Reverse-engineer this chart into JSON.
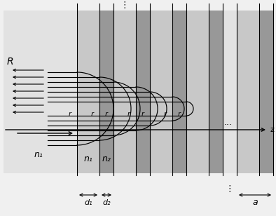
{
  "fig_width": 3.94,
  "fig_height": 3.08,
  "dpi": 100,
  "color_bg_outer": "#f0f0f0",
  "color_bg_main": "#e2e2e2",
  "color_n1_slab": "#c8c8c8",
  "color_n2_slab": "#989898",
  "color_black": "#000000",
  "label_n1": "n₁",
  "label_n2": "n₂",
  "label_r": "r",
  "label_R": "R",
  "label_z": "z",
  "label_d1": "d₁",
  "label_d2": "d₂",
  "label_a": "a",
  "label_dots_v": "⋮",
  "label_dots_h": "..."
}
